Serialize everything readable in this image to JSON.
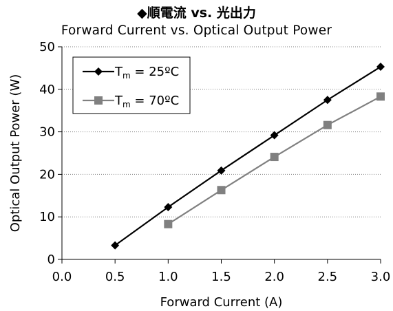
{
  "chart_data": {
    "type": "line",
    "title": "◆順電流 vs. 光出力",
    "subtitle": "Forward Current vs. Optical Output Power",
    "xlabel": "Forward Current (A)",
    "ylabel": "Optical Output Power (W)",
    "xlim": [
      0.0,
      3.0
    ],
    "ylim": [
      0,
      50
    ],
    "x_ticks": [
      "0.0",
      "0.5",
      "1.0",
      "1.5",
      "2.0",
      "2.5",
      "3.0"
    ],
    "y_ticks": [
      "0",
      "10",
      "20",
      "30",
      "40",
      "50"
    ],
    "grid": "horizontal-dotted",
    "legend_position": "top-left",
    "series": [
      {
        "name": "Tm = 25ºC",
        "label_main": "T",
        "label_sub": "m",
        "label_rest": " = 25ºC",
        "marker": "diamond",
        "color": "#000000",
        "x": [
          0.5,
          1.0,
          1.5,
          2.0,
          2.5,
          3.0
        ],
        "y": [
          3.3,
          12.3,
          20.9,
          29.2,
          37.5,
          45.3
        ]
      },
      {
        "name": "Tm = 70ºC",
        "label_main": "T",
        "label_sub": "m",
        "label_rest": " = 70ºC",
        "marker": "square",
        "color": "#808080",
        "x": [
          1.0,
          1.5,
          2.0,
          2.5,
          3.0
        ],
        "y": [
          8.3,
          16.3,
          24.1,
          31.6,
          38.3
        ]
      }
    ]
  }
}
